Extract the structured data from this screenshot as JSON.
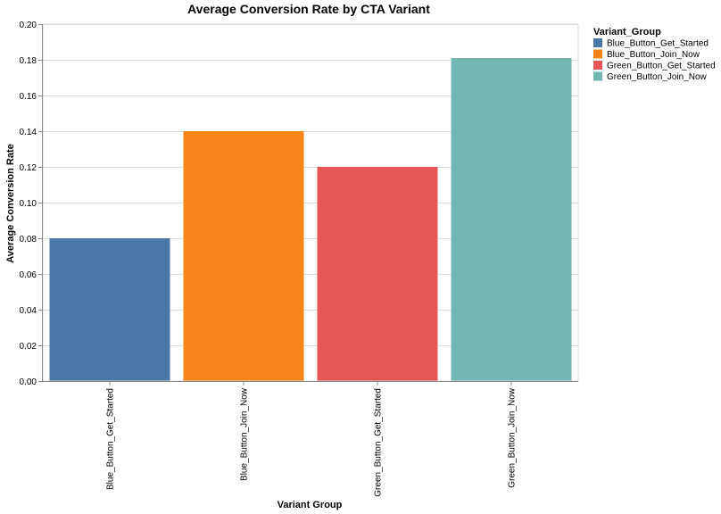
{
  "chart_data": {
    "type": "bar",
    "title": "Average Conversion Rate by CTA Variant",
    "xlabel": "Variant Group",
    "ylabel": "Average Conversion Rate",
    "categories": [
      "Blue_Button_Get_Started",
      "Blue_Button_Join_Now",
      "Green_Button_Get_Started",
      "Green_Button_Join_Now"
    ],
    "values": [
      0.08,
      0.14,
      0.12,
      0.181
    ],
    "colors": [
      "#4c78a8",
      "#f58518",
      "#e45756",
      "#72b7b2"
    ],
    "ylim": [
      0,
      0.2
    ],
    "yticks": [
      0.0,
      0.02,
      0.04,
      0.06,
      0.08,
      0.1,
      0.12,
      0.14,
      0.16,
      0.18,
      0.2
    ],
    "ytick_labels": [
      "0.00",
      "0.02",
      "0.04",
      "0.06",
      "0.08",
      "0.10",
      "0.12",
      "0.14",
      "0.16",
      "0.18",
      "0.20"
    ],
    "grid": true,
    "legend": {
      "title": "Variant_Group",
      "placement": "right",
      "entries": [
        "Blue_Button_Get_Started",
        "Blue_Button_Join_Now",
        "Green_Button_Get_Started",
        "Green_Button_Join_Now"
      ]
    }
  }
}
